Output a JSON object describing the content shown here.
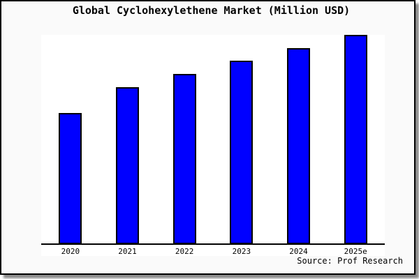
{
  "title": "Global Cyclohexylethene Market (Million USD)",
  "source_label": "Source: Prof Research",
  "colors": {
    "bar_fill": "#0000ff",
    "bar_border": "#000000",
    "figure_background": "#fafafa",
    "plot_background": "#ffffff",
    "axis_line": "#000000",
    "frame_border": "#000000",
    "shadow": "#8a8a8a",
    "text": "#000000"
  },
  "chart_data": {
    "type": "bar",
    "title": "Global Cyclohexylethene Market (Million USD)",
    "categories": [
      "2020",
      "2021",
      "2022",
      "2023",
      "2024",
      "2025e"
    ],
    "values": [
      188,
      225,
      244,
      263,
      281,
      300
    ],
    "xlabel": "",
    "ylabel": "",
    "ylim": [
      0,
      300
    ],
    "y_axis_visible": false,
    "grid": false,
    "legend": false,
    "source": "Source: Prof Research"
  }
}
